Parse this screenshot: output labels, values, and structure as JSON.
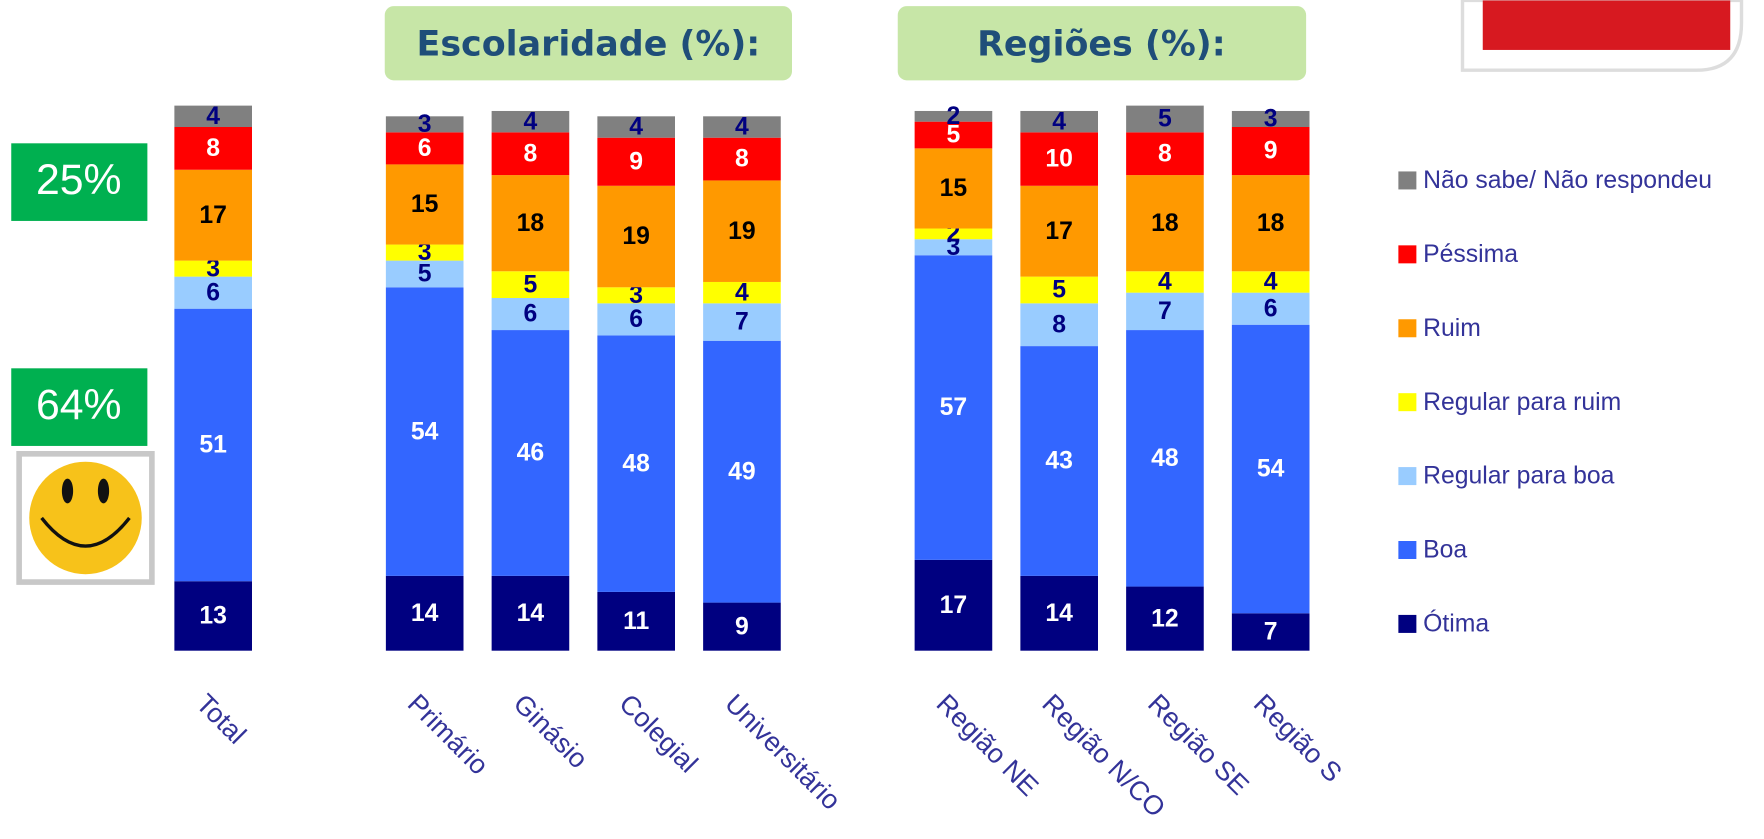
{
  "chart_data": {
    "type": "stacked-bar",
    "annotations": [
      "Escolaridade (%):",
      "Regiões (%):",
      "25%",
      "64%"
    ],
    "categories": [
      "Total",
      "Primário",
      "Ginásio",
      "Colegial",
      "Universitário",
      "Região NE",
      "Região N/CO",
      "Região SE",
      "Região S"
    ],
    "series": [
      {
        "name": "Ótima",
        "color": "#000080",
        "values": [
          13,
          14,
          14,
          11,
          9,
          17,
          14,
          12,
          7
        ]
      },
      {
        "name": "Boa",
        "color": "#3366ff",
        "values": [
          51,
          54,
          46,
          48,
          49,
          57,
          43,
          48,
          54
        ]
      },
      {
        "name": "Regular para boa",
        "color": "#99ccff",
        "values": [
          6,
          5,
          6,
          6,
          7,
          3,
          8,
          7,
          6
        ]
      },
      {
        "name": "Regular para ruim",
        "color": "#ffff00",
        "values": [
          3,
          3,
          5,
          3,
          4,
          2,
          5,
          4,
          4
        ]
      },
      {
        "name": "Ruim",
        "color": "#ff9900",
        "values": [
          17,
          15,
          18,
          19,
          19,
          15,
          17,
          18,
          18
        ]
      },
      {
        "name": "Péssima",
        "color": "#ff0000",
        "values": [
          8,
          6,
          8,
          9,
          8,
          5,
          10,
          8,
          9
        ]
      },
      {
        "name": "Não sabe/ Não respondeu",
        "color": "#808080",
        "values": [
          4,
          3,
          4,
          4,
          4,
          2,
          4,
          5,
          3
        ]
      }
    ]
  }
}
